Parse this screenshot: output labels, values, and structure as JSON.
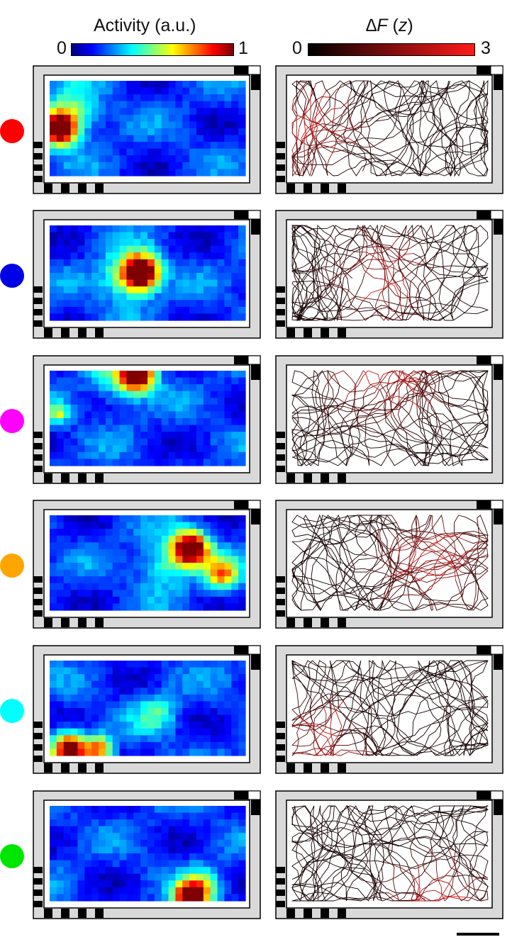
{
  "header": {
    "left_title": "Activity (a.u.)",
    "left_min": "0",
    "left_max": "1",
    "right_title_delta": "∆",
    "right_title_f": "F",
    "right_title_paren_open": " (",
    "right_title_z": "z",
    "right_title_paren_close": ")",
    "right_min": "0",
    "right_max": "3"
  },
  "colormaps": {
    "activity": [
      "#00007f",
      "#0000ff",
      "#007fff",
      "#00ffff",
      "#7fff7f",
      "#ffff00",
      "#ff7f00",
      "#ff0000",
      "#7f0000"
    ],
    "delta_f": [
      "#000000",
      "#ff1a1a"
    ]
  },
  "rows": [
    {
      "marker_color": "#ff0000",
      "hotspot": "left edge, middle",
      "trace_hot_region": "left side"
    },
    {
      "marker_color": "#0000e6",
      "hotspot": "centre",
      "trace_hot_region": "centre"
    },
    {
      "marker_color": "#ff00ff",
      "hotspot": "top edge, centre-left",
      "trace_hot_region": "top"
    },
    {
      "marker_color": "#ffa500",
      "hotspot": "upper right",
      "trace_hot_region": "right side"
    },
    {
      "marker_color": "#00ffff",
      "hotspot": "bottom-left corner",
      "trace_hot_region": "bottom-left"
    },
    {
      "marker_color": "#00e600",
      "hotspot": "bottom edge, centre-right",
      "trace_hot_region": "bottom centre-right"
    }
  ],
  "scale_bar_label": ""
}
